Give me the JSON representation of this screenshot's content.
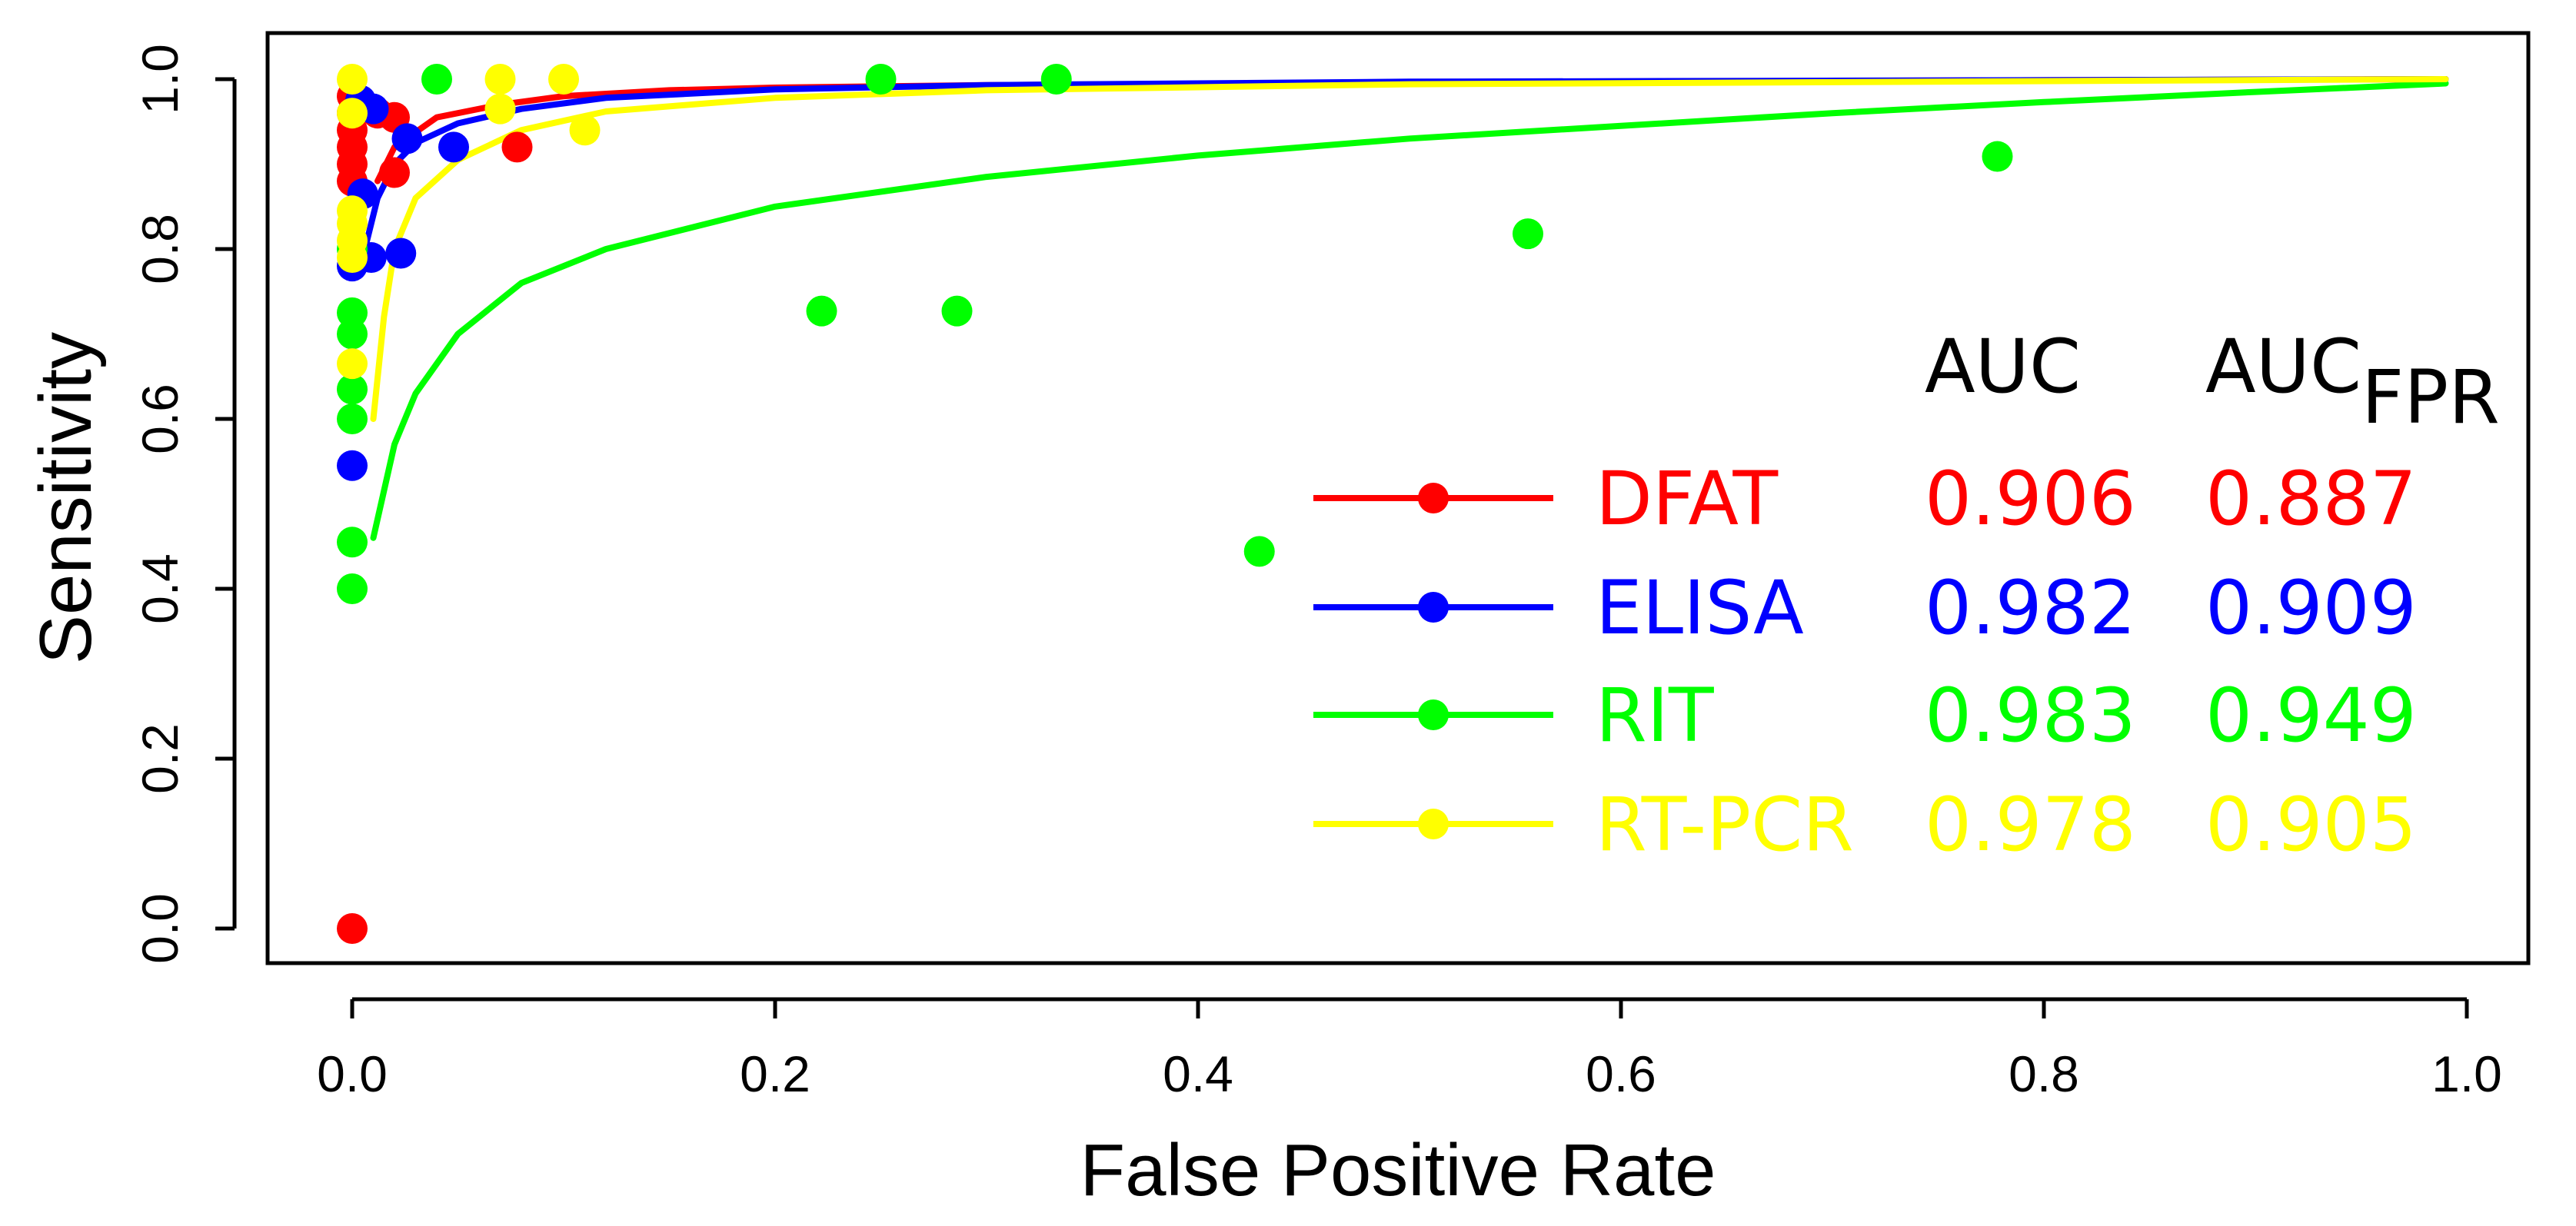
{
  "chart_data": {
    "type": "scatter",
    "xlabel": "False Positive Rate",
    "ylabel": "Sensitivity",
    "xlim": [
      0,
      1
    ],
    "ylim": [
      0,
      1
    ],
    "x_ticks": [
      "0.0",
      "0.2",
      "0.4",
      "0.6",
      "0.8",
      "1.0"
    ],
    "y_ticks": [
      "0.0",
      "0.2",
      "0.4",
      "0.6",
      "0.8",
      "1.0"
    ],
    "grid": false,
    "legend_position": "bottom-right",
    "legend_headers": {
      "auc": "AUC",
      "auc_fpr_main": "AUC",
      "auc_fpr_sub": "FPR"
    },
    "series": [
      {
        "name": "DFAT",
        "color": "#ff0000",
        "auc": "0.906",
        "auc_fpr": "0.887",
        "points": [
          [
            0,
            0
          ],
          [
            0,
            0.88
          ],
          [
            0,
            0.9
          ],
          [
            0,
            0.92
          ],
          [
            0,
            0.94
          ],
          [
            0,
            0.96
          ],
          [
            0,
            0.98
          ],
          [
            0.02,
            0.89
          ],
          [
            0.012,
            0.96
          ],
          [
            0.02,
            0.955
          ],
          [
            0.078,
            0.92
          ]
        ],
        "curve": [
          [
            0.012,
            0.88
          ],
          [
            0.02,
            0.92
          ],
          [
            0.04,
            0.955
          ],
          [
            0.07,
            0.97
          ],
          [
            0.1,
            0.98
          ],
          [
            0.15,
            0.987
          ],
          [
            0.2,
            0.99
          ],
          [
            0.3,
            0.993
          ],
          [
            0.5,
            0.996
          ],
          [
            0.7,
            0.998
          ],
          [
            0.99,
            1.0
          ]
        ]
      },
      {
        "name": "ELISA",
        "color": "#0000ff",
        "auc": "0.982",
        "auc_fpr": "0.909",
        "points": [
          [
            0,
            0.545
          ],
          [
            0,
            0.78
          ],
          [
            0.009,
            0.79
          ],
          [
            0.023,
            0.795
          ],
          [
            0.005,
            0.865
          ],
          [
            0.026,
            0.93
          ],
          [
            0.048,
            0.92
          ],
          [
            0.004,
            0.975
          ],
          [
            0.01,
            0.965
          ]
        ],
        "curve": [
          [
            0.005,
            0.79
          ],
          [
            0.012,
            0.86
          ],
          [
            0.02,
            0.9
          ],
          [
            0.03,
            0.925
          ],
          [
            0.05,
            0.948
          ],
          [
            0.08,
            0.965
          ],
          [
            0.12,
            0.978
          ],
          [
            0.2,
            0.988
          ],
          [
            0.3,
            0.993
          ],
          [
            0.5,
            0.997
          ],
          [
            0.99,
            1.0
          ]
        ]
      },
      {
        "name": "RIT",
        "color": "#00ff00",
        "auc": "0.983",
        "auc_fpr": "0.949",
        "points": [
          [
            0,
            0.4
          ],
          [
            0,
            0.455
          ],
          [
            0,
            0.6
          ],
          [
            0,
            0.635
          ],
          [
            0,
            0.7
          ],
          [
            0,
            0.725
          ],
          [
            0,
            0.8
          ],
          [
            0.04,
            1.0
          ],
          [
            0.222,
            0.727
          ],
          [
            0.25,
            1.0
          ],
          [
            0.286,
            0.727
          ],
          [
            0.333,
            1.0
          ],
          [
            0.429,
            0.444
          ],
          [
            0.556,
            0.818
          ],
          [
            0.778,
            0.909
          ]
        ],
        "curve": [
          [
            0.01,
            0.46
          ],
          [
            0.02,
            0.57
          ],
          [
            0.03,
            0.63
          ],
          [
            0.05,
            0.7
          ],
          [
            0.08,
            0.76
          ],
          [
            0.12,
            0.8
          ],
          [
            0.2,
            0.85
          ],
          [
            0.3,
            0.885
          ],
          [
            0.4,
            0.91
          ],
          [
            0.5,
            0.93
          ],
          [
            0.6,
            0.945
          ],
          [
            0.7,
            0.96
          ],
          [
            0.8,
            0.973
          ],
          [
            0.9,
            0.985
          ],
          [
            0.99,
            0.995
          ]
        ]
      },
      {
        "name": "RT-PCR",
        "color": "#ffff00",
        "auc": "0.978",
        "auc_fpr": "0.905",
        "points": [
          [
            0,
            0.665
          ],
          [
            0,
            0.79
          ],
          [
            0,
            0.81
          ],
          [
            0,
            0.83
          ],
          [
            0,
            0.845
          ],
          [
            0,
            0.96
          ],
          [
            0,
            1.0
          ],
          [
            0.07,
            1.0
          ],
          [
            0.07,
            0.965
          ],
          [
            0.1,
            1.0
          ],
          [
            0.11,
            0.94
          ]
        ],
        "curve": [
          [
            0.01,
            0.6
          ],
          [
            0.015,
            0.72
          ],
          [
            0.02,
            0.8
          ],
          [
            0.03,
            0.86
          ],
          [
            0.05,
            0.905
          ],
          [
            0.08,
            0.94
          ],
          [
            0.12,
            0.962
          ],
          [
            0.2,
            0.978
          ],
          [
            0.3,
            0.987
          ],
          [
            0.5,
            0.994
          ],
          [
            0.99,
            1.0
          ]
        ]
      }
    ]
  }
}
